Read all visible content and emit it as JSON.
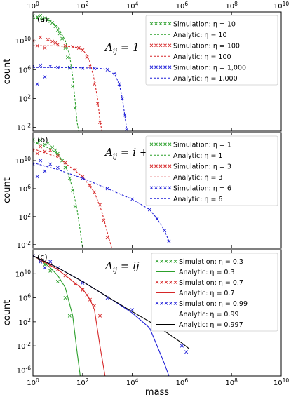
{
  "figure": {
    "x_top_ticks": [
      "10^0",
      "10^2",
      "10^4",
      "10^6",
      "10^8",
      "10^10"
    ]
  },
  "chart_data": [
    {
      "type": "scatter",
      "panel_label": "(a)",
      "annotation": "A_ij = 1",
      "xlabel": "",
      "ylabel": "count",
      "x_scale": "log",
      "y_scale": "log",
      "xlim": [
        1,
        10000000000
      ],
      "ylim": [
        0.003,
        100000000000000
      ],
      "x_ticks": [
        "10^0",
        "10^2",
        "10^4",
        "10^6",
        "10^8",
        "10^10"
      ],
      "y_ticks": [
        "10^10",
        "10^6",
        "10^2",
        "10^-2"
      ],
      "legend_placement": "top-right",
      "series": [
        {
          "name": "Simulation: η = 10",
          "kind": "markers",
          "color": "#2ca02c",
          "x": [
            1,
            1.5,
            2,
            2.5,
            3,
            4,
            5,
            6,
            8,
            10,
            12,
            15,
            20,
            25,
            30,
            40,
            50
          ],
          "y": [
            30000000000000,
            20000000000000,
            30000000000000,
            10000000000000,
            15000000000000,
            9000000000000,
            5000000000000,
            3000000000000,
            1000000000000,
            300000000000,
            100000000000,
            20000000000,
            1000000000,
            50000000,
            2000000,
            5000,
            5
          ]
        },
        {
          "name": "Analytic: η = 10",
          "kind": "dashed",
          "color": "#2ca02c",
          "x": [
            1,
            2,
            5,
            10,
            20,
            30,
            40,
            50,
            60,
            70
          ],
          "y": [
            13000000000000,
            11000000000000,
            5000000000000,
            900000000000,
            10000000000,
            100000000,
            100000,
            50,
            0.05,
            0.003
          ]
        },
        {
          "name": "Simulation: η = 100",
          "kind": "markers",
          "color": "#d62728",
          "x": [
            1,
            1.5,
            2,
            3,
            4,
            6,
            8,
            10,
            20,
            40,
            70,
            100,
            150,
            200,
            300,
            400,
            500
          ],
          "y": [
            10000000000,
            2000000000,
            30000000000,
            1000000000,
            15000000000,
            8000000000,
            5000000000,
            3000000000,
            2000000000,
            1500000000,
            1000000000,
            500000000,
            50000000,
            3000000,
            10000,
            20,
            0.05
          ]
        },
        {
          "name": "Analytic: η = 100",
          "kind": "dashed",
          "color": "#d62728",
          "x": [
            1,
            5,
            20,
            60,
            100,
            150,
            200,
            300,
            400,
            500,
            600
          ],
          "y": [
            2000000000,
            2000000000,
            1800000000,
            1200000000,
            600000000,
            100000000,
            10000000,
            30000,
            100,
            0.1,
            0.003
          ]
        },
        {
          "name": "Simulation: η = 1,000",
          "kind": "markers",
          "color": "#1f1fd8",
          "x": [
            1,
            1.5,
            2,
            3,
            5,
            10,
            30,
            100,
            300,
            1000,
            2000,
            3000,
            4000,
            5000,
            6000
          ],
          "y": [
            3000000,
            10000,
            4000000,
            100000,
            3000000,
            2000000,
            1700000,
            1600000,
            1500000,
            1000000,
            300000,
            10000,
            100,
            0.5,
            0.005
          ]
        },
        {
          "name": "Analytic: η = 1,000",
          "kind": "dashed",
          "color": "#1f1fd8",
          "x": [
            1,
            10,
            100,
            500,
            1000,
            2000,
            3000,
            4000,
            5000,
            6000
          ],
          "y": [
            2000000,
            2000000,
            1800000,
            1500000,
            1000000,
            200000,
            10000,
            100,
            0.5,
            0.005
          ]
        }
      ]
    },
    {
      "type": "scatter",
      "panel_label": "(b)",
      "annotation": "A_ij = i + j",
      "xlabel": "",
      "ylabel": "count",
      "x_scale": "log",
      "y_scale": "log",
      "xlim": [
        1,
        10000000000
      ],
      "ylim": [
        0.003,
        100000000000000
      ],
      "x_ticks": [
        "10^0",
        "10^2",
        "10^4",
        "10^6",
        "10^8",
        "10^10"
      ],
      "y_ticks": [
        "10^10",
        "10^6",
        "10^2",
        "10^-2"
      ],
      "legend_placement": "top-right",
      "series": [
        {
          "name": "Simulation: η = 1",
          "kind": "markers",
          "color": "#2ca02c",
          "x": [
            1,
            1.5,
            2,
            3,
            4,
            6,
            8,
            10,
            15,
            20,
            30,
            40,
            50
          ],
          "y": [
            10000000000000,
            3000000000000,
            8000000000000,
            2000000000000,
            3000000000000,
            800000000000,
            300000000000,
            100000000000,
            10000000000,
            1000000000,
            30000000,
            500000,
            3000
          ]
        },
        {
          "name": "Analytic: η = 1",
          "kind": "dashed",
          "color": "#2ca02c",
          "x": [
            1,
            2,
            5,
            10,
            20,
            40,
            60,
            80,
            100
          ],
          "y": [
            5000000000000,
            2000000000000,
            500000000000,
            80000000000,
            3000000000,
            1000000,
            1000,
            1,
            0.003
          ]
        },
        {
          "name": "Simulation: η = 3",
          "kind": "markers",
          "color": "#d62728",
          "x": [
            1,
            1.5,
            2,
            3,
            5,
            10,
            20,
            50,
            100,
            200,
            300,
            500,
            700,
            1000
          ],
          "y": [
            300000000000,
            100000000000,
            1000000000000,
            200000000000,
            300000000000,
            50000000000,
            5000000000,
            500000000,
            50000000,
            3000000,
            300000,
            5000,
            30,
            0.1
          ]
        },
        {
          "name": "Analytic: η = 3",
          "kind": "dashed",
          "color": "#d62728",
          "x": [
            1,
            10,
            100,
            300,
            600,
            1000,
            1500
          ],
          "y": [
            500000000000,
            30000000000,
            50000000,
            300000,
            500,
            0.5,
            0.003
          ]
        },
        {
          "name": "Simulation: η = 6",
          "kind": "markers",
          "color": "#1f1fd8",
          "x": [
            1,
            1.5,
            2,
            3,
            5,
            10,
            100,
            1000,
            10000,
            50000,
            100000,
            200000,
            300000
          ],
          "y": [
            3000000000,
            50000000,
            10000000000,
            300000000,
            3000000000,
            1000000000,
            30000000,
            1000000,
            30000,
            1000,
            50,
            1,
            0.03
          ]
        },
        {
          "name": "Analytic: η = 6",
          "kind": "dashed",
          "color": "#1f1fd8",
          "x": [
            1,
            10,
            100,
            1000,
            10000,
            50000,
            100000,
            200000,
            300000
          ],
          "y": [
            5000000000,
            500000000,
            30000000,
            1000000,
            30000,
            1000,
            50,
            1,
            0.03
          ]
        }
      ]
    },
    {
      "type": "line",
      "panel_label": "(c)",
      "annotation": "A_ij = ij",
      "xlabel": "mass",
      "ylabel": "count",
      "x_scale": "log",
      "y_scale": "log",
      "xlim": [
        1,
        10000000000
      ],
      "ylim": [
        1e-07,
        100000000000000
      ],
      "x_ticks": [
        "10^0",
        "10^2",
        "10^4",
        "10^6",
        "10^8",
        "10^10"
      ],
      "y_ticks": [
        "10^10",
        "10^6",
        "10^2",
        "10^-2",
        "10^-6"
      ],
      "legend_placement": "top-right",
      "series": [
        {
          "name": "Simulation: η = 0.3",
          "kind": "markers",
          "color": "#2ca02c",
          "x": [
            1,
            2,
            3,
            5,
            10,
            20,
            30
          ],
          "y": [
            10000000000000,
            1000000000000,
            300000000000,
            30000000000,
            500000000,
            1000000,
            1000
          ]
        },
        {
          "name": "Analytic: η = 0.3",
          "kind": "solid",
          "color": "#2ca02c",
          "x": [
            1,
            2,
            5,
            10,
            20,
            40,
            60,
            80
          ],
          "y": [
            10000000000000,
            2000000000000,
            100000000000,
            5000000000,
            50000000,
            1000,
            0.001,
            1e-07
          ]
        },
        {
          "name": "Simulation: η = 0.7",
          "kind": "markers",
          "color": "#d62728",
          "x": [
            1,
            2,
            3,
            5,
            10,
            20,
            50,
            100,
            150,
            200,
            300,
            500
          ],
          "y": [
            10000000000000,
            2000000000000,
            1000000000000,
            300000000000,
            50000000000,
            5000000000,
            200000000,
            20000000,
            3000000,
            500000,
            50000,
            1000
          ]
        },
        {
          "name": "Analytic: η = 0.7",
          "kind": "solid",
          "color": "#d62728",
          "x": [
            1,
            10,
            100,
            200,
            300,
            500,
            800
          ],
          "y": [
            10000000000000,
            50000000000,
            30000000,
            500000,
            10000,
            0.01,
            1e-07
          ]
        },
        {
          "name": "Simulation: η = 0.99",
          "kind": "markers",
          "color": "#1f1fd8",
          "x": [
            1,
            2,
            3,
            5,
            10,
            100,
            1000,
            10000,
            100000,
            1000000,
            1500000
          ],
          "y": [
            10000000000000,
            1000000000000,
            100000000000,
            1000000000000,
            100000000000,
            300000000,
            1000000,
            10000,
            10,
            0.01,
            0.001
          ]
        },
        {
          "name": "Analytic: η = 0.99",
          "kind": "solid",
          "color": "#1f1fd8",
          "x": [
            1,
            10,
            100,
            1000,
            10000,
            50000,
            100000,
            200000,
            300000
          ],
          "y": [
            10000000000000,
            100000000000,
            500000000,
            1500000,
            3000,
            10,
            0.01,
            1e-05,
            1e-07
          ]
        },
        {
          "name": "Analytic: η = 0.997",
          "kind": "solid",
          "color": "#000000",
          "x": [
            1,
            10,
            100,
            1000,
            10000,
            100000,
            1000000,
            2000000
          ],
          "y": [
            10000000000000,
            100000000000,
            500000000,
            1500000,
            5000,
            20,
            0.03,
            0.003
          ]
        }
      ]
    }
  ]
}
